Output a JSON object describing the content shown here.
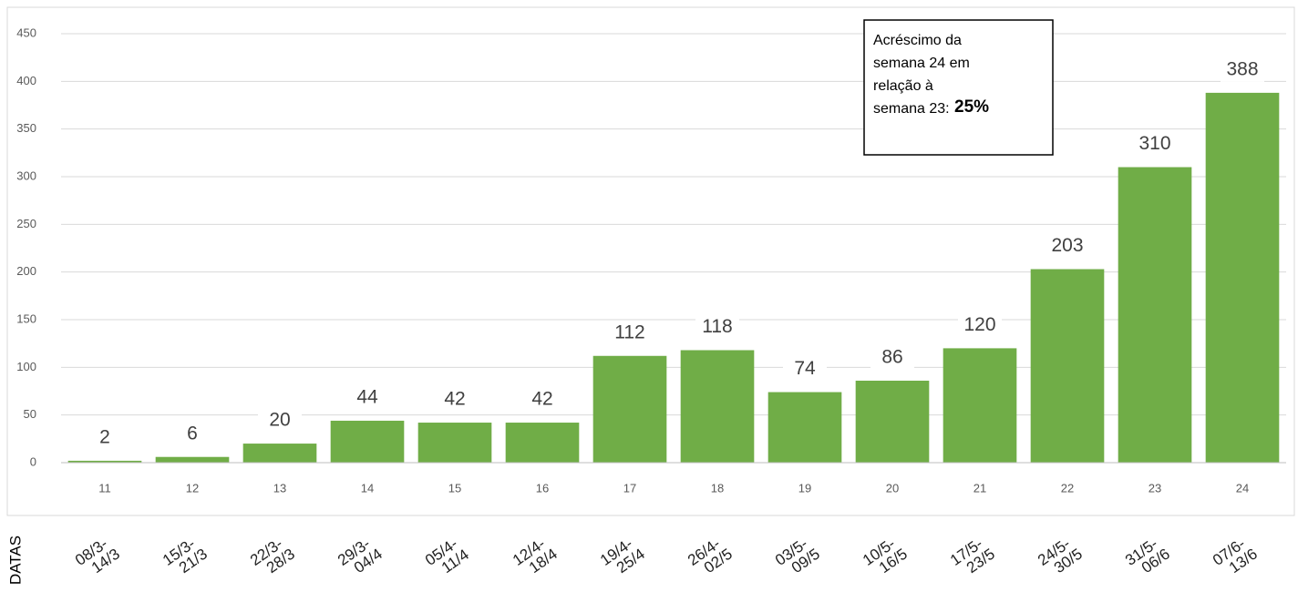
{
  "chart_data": {
    "type": "bar",
    "categories": [
      "11",
      "12",
      "13",
      "14",
      "15",
      "16",
      "17",
      "18",
      "19",
      "20",
      "21",
      "22",
      "23",
      "24"
    ],
    "values": [
      2,
      6,
      20,
      44,
      42,
      42,
      112,
      118,
      74,
      86,
      120,
      203,
      310,
      388
    ],
    "color": "#70ad47",
    "ylim": [
      0,
      450
    ],
    "yticks": [
      0,
      50,
      100,
      150,
      200,
      250,
      300,
      350,
      400,
      450
    ],
    "grid": true,
    "x_axis_label": "DATAS",
    "date_ranges": [
      [
        "08/3-",
        "14/3"
      ],
      [
        "15/3-",
        "21/3"
      ],
      [
        "22/3-",
        "28/3"
      ],
      [
        "29/3-",
        "04/4"
      ],
      [
        "05/4-",
        "11/4"
      ],
      [
        "12/4-",
        "18/4"
      ],
      [
        "19/4-",
        "25/4"
      ],
      [
        "26/4-",
        "02/5"
      ],
      [
        "03/5-",
        "09/5"
      ],
      [
        "10/5-",
        "16/5"
      ],
      [
        "17/5-",
        "23/5"
      ],
      [
        "24/5-",
        "30/5"
      ],
      [
        "31/5-",
        "06/6"
      ],
      [
        "07/6-",
        "13/6"
      ]
    ],
    "annotation": {
      "lines": [
        "Acréscimo da",
        "semana 24 em",
        "relação à",
        "semana 23:"
      ],
      "highlight": "25%"
    }
  }
}
